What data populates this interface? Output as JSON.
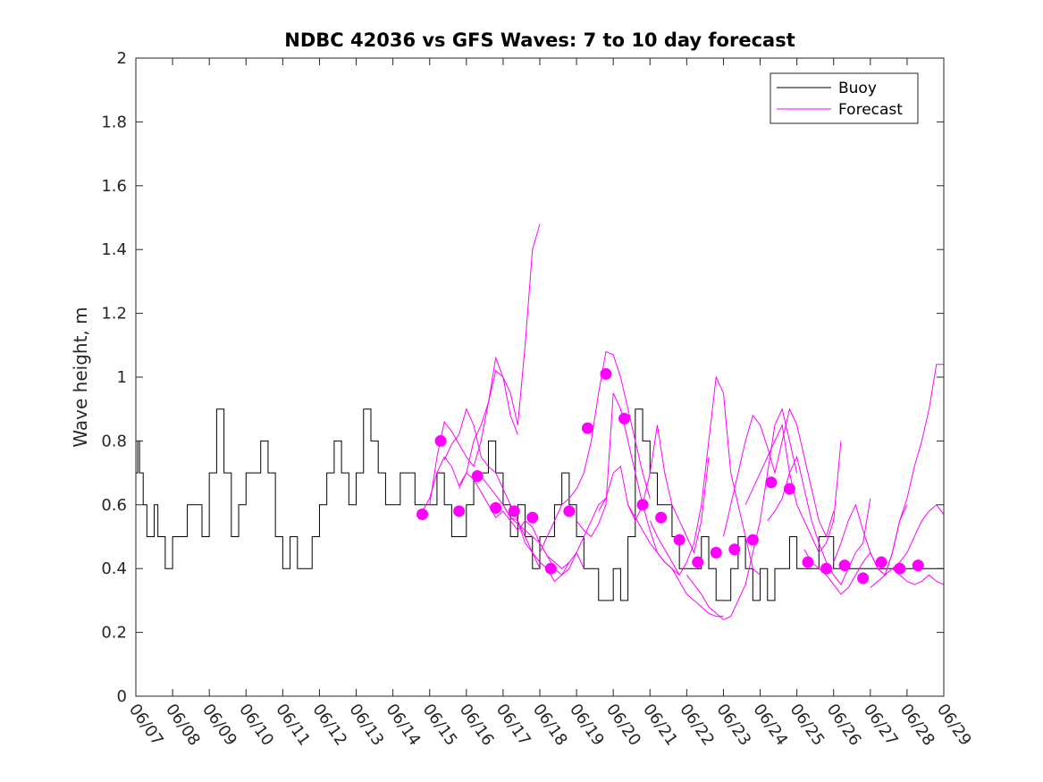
{
  "chart_data": {
    "type": "line",
    "title": "NDBC 42036 vs GFS Waves: 7 to 10 day forecast",
    "xlabel": "",
    "ylabel": "Wave height, m",
    "ylim": [
      0,
      2
    ],
    "yticks": [
      "0",
      "0.2",
      "0.4",
      "0.6",
      "0.8",
      "1",
      "1.2",
      "1.4",
      "1.6",
      "1.8",
      "2"
    ],
    "xlim_days": [
      0,
      22
    ],
    "xticks": [
      "06/07",
      "06/08",
      "06/09",
      "06/10",
      "06/11",
      "06/12",
      "06/13",
      "06/14",
      "06/15",
      "06/16",
      "06/17",
      "06/18",
      "06/19",
      "06/20",
      "06/21",
      "06/22",
      "06/23",
      "06/24",
      "06/25",
      "06/26",
      "06/27",
      "06/28",
      "06/29"
    ],
    "grid": false,
    "legend": {
      "position": "top-right",
      "entries": [
        "Buoy",
        "Forecast"
      ]
    },
    "colors": {
      "buoy": "#000000",
      "forecast": "#ff00ff"
    },
    "series": [
      {
        "name": "Buoy",
        "x": [
          0,
          0.05,
          0.1,
          0.2,
          0.3,
          0.4,
          0.5,
          0.6,
          0.8,
          1.0,
          1.2,
          1.4,
          1.6,
          1.8,
          2.0,
          2.2,
          2.4,
          2.6,
          2.8,
          3.0,
          3.2,
          3.4,
          3.6,
          3.8,
          4.0,
          4.2,
          4.4,
          4.6,
          4.8,
          5.0,
          5.2,
          5.4,
          5.6,
          5.8,
          6.0,
          6.2,
          6.4,
          6.6,
          6.8,
          7.0,
          7.2,
          7.4,
          7.6,
          7.8,
          8.0,
          8.2,
          8.4,
          8.6,
          8.8,
          9.0,
          9.2,
          9.4,
          9.6,
          9.8,
          10.0,
          10.2,
          10.4,
          10.6,
          10.8,
          11.0,
          11.2,
          11.4,
          11.6,
          11.8,
          12.0,
          12.2,
          12.4,
          12.6,
          12.8,
          13.0,
          13.2,
          13.4,
          13.6,
          13.8,
          14.0,
          14.2,
          14.4,
          14.6,
          14.8,
          15.0,
          15.2,
          15.4,
          15.6,
          15.8,
          16.0,
          16.2,
          16.4,
          16.6,
          16.8,
          17.0,
          17.2,
          17.4,
          17.6,
          17.8,
          18.0,
          18.2,
          18.4,
          18.6,
          18.8,
          19.0,
          19.2,
          19.4,
          19.6,
          19.8,
          20.0,
          20.2,
          20.4,
          20.6,
          20.8,
          21.0,
          21.2,
          21.4,
          21.6,
          21.8,
          22.0
        ],
        "values": [
          0.7,
          0.8,
          0.7,
          0.6,
          0.5,
          0.5,
          0.6,
          0.5,
          0.4,
          0.5,
          0.5,
          0.6,
          0.6,
          0.5,
          0.7,
          0.9,
          0.7,
          0.5,
          0.6,
          0.7,
          0.7,
          0.8,
          0.7,
          0.5,
          0.4,
          0.5,
          0.4,
          0.4,
          0.5,
          0.6,
          0.7,
          0.8,
          0.7,
          0.6,
          0.7,
          0.9,
          0.8,
          0.7,
          0.6,
          0.6,
          0.7,
          0.7,
          0.6,
          0.6,
          0.6,
          0.7,
          0.6,
          0.5,
          0.5,
          0.6,
          0.7,
          0.7,
          0.8,
          0.7,
          0.6,
          0.5,
          0.6,
          0.5,
          0.4,
          0.5,
          0.5,
          0.6,
          0.7,
          0.6,
          0.5,
          0.4,
          0.4,
          0.3,
          0.3,
          0.4,
          0.3,
          0.5,
          0.9,
          0.8,
          0.7,
          0.6,
          0.6,
          0.5,
          0.4,
          0.4,
          0.4,
          0.5,
          0.4,
          0.3,
          0.3,
          0.4,
          0.5,
          0.4,
          0.3,
          0.4,
          0.3,
          0.4,
          0.4,
          0.5,
          0.4,
          0.4,
          0.4,
          0.5,
          0.5,
          0.4,
          0.4,
          0.4,
          0.4,
          0.4,
          0.4,
          0.4,
          0.4,
          0.4,
          0.4,
          0.4,
          0.4,
          0.4,
          0.4,
          0.4,
          0.4
        ]
      },
      {
        "name": "Forecast",
        "lines": [
          {
            "x": [
              7.8,
              8.0,
              8.2,
              8.4,
              8.6,
              8.8,
              9.0,
              9.2,
              9.4,
              9.6,
              9.8,
              10.0,
              10.2,
              10.4,
              10.6,
              10.8,
              11.0
            ],
            "values": [
              0.58,
              0.62,
              0.7,
              0.75,
              0.72,
              0.66,
              0.7,
              0.8,
              0.85,
              0.92,
              1.06,
              1.0,
              0.95,
              0.85,
              1.1,
              1.4,
              1.48
            ]
          },
          {
            "x": [
              8.0,
              8.2,
              8.4,
              8.6,
              8.8,
              9.0,
              9.2,
              9.4,
              9.6,
              9.8,
              10.0,
              10.2,
              10.4
            ],
            "values": [
              0.6,
              0.75,
              0.86,
              0.83,
              0.79,
              0.75,
              0.72,
              0.8,
              0.92,
              1.02,
              1.0,
              0.88,
              0.82
            ]
          },
          {
            "x": [
              8.4,
              8.6,
              8.8,
              9.0,
              9.2,
              9.4,
              9.6,
              9.8,
              10.0,
              10.2,
              10.4,
              10.6,
              10.8,
              11.0
            ],
            "values": [
              0.74,
              0.79,
              0.82,
              0.9,
              0.85,
              0.75,
              0.72,
              0.7,
              0.65,
              0.6,
              0.55,
              0.48,
              0.45,
              0.4
            ]
          },
          {
            "x": [
              8.8,
              9.0,
              9.2,
              9.4,
              9.6,
              9.8,
              10.0,
              10.2,
              10.4,
              10.6,
              10.8,
              11.0,
              11.2,
              11.4,
              11.6,
              11.8
            ],
            "values": [
              0.65,
              0.7,
              0.68,
              0.64,
              0.6,
              0.56,
              0.58,
              0.55,
              0.52,
              0.55,
              0.53,
              0.48,
              0.44,
              0.42,
              0.4,
              0.42
            ]
          },
          {
            "x": [
              9.4,
              9.6,
              9.8,
              10.0,
              10.2,
              10.4,
              10.6,
              10.8,
              11.0,
              11.2,
              11.4,
              11.6,
              11.8,
              12.0,
              12.2
            ],
            "values": [
              0.69,
              0.66,
              0.63,
              0.6,
              0.56,
              0.54,
              0.52,
              0.5,
              0.48,
              0.44,
              0.4,
              0.38,
              0.4,
              0.45,
              0.4
            ]
          },
          {
            "x": [
              10.0,
              10.2,
              10.4,
              10.6,
              10.8,
              11.0,
              11.2,
              11.4,
              11.6,
              11.8,
              12.0,
              12.2,
              12.4,
              12.6,
              12.8
            ],
            "values": [
              0.6,
              0.56,
              0.55,
              0.5,
              0.45,
              0.42,
              0.4,
              0.36,
              0.38,
              0.42,
              0.45,
              0.5,
              0.55,
              0.6,
              0.62
            ]
          },
          {
            "x": [
              11.0,
              11.2,
              11.4,
              11.6,
              11.8,
              12.0,
              12.2,
              12.4,
              12.6,
              12.8,
              13.0,
              13.2,
              13.4,
              13.6,
              13.8,
              14.0
            ],
            "values": [
              0.45,
              0.5,
              0.55,
              0.6,
              0.62,
              0.65,
              0.7,
              0.8,
              0.95,
              1.08,
              1.07,
              1.0,
              0.9,
              0.8,
              0.7,
              0.62
            ]
          },
          {
            "x": [
              12.0,
              12.2,
              12.4,
              12.6,
              12.8,
              13.0,
              13.2,
              13.4,
              13.6,
              13.8,
              14.0,
              14.2,
              14.4,
              14.6,
              14.8
            ],
            "values": [
              0.55,
              0.52,
              0.5,
              0.54,
              0.6,
              0.95,
              0.9,
              0.8,
              0.7,
              0.6,
              0.52,
              0.45,
              0.42,
              0.4,
              0.38
            ]
          },
          {
            "x": [
              12.6,
              12.8,
              13.0,
              13.2,
              13.4,
              13.6,
              13.8,
              14.0,
              14.2,
              14.4,
              14.6,
              14.8,
              15.0,
              15.2,
              15.4,
              15.6
            ],
            "values": [
              0.58,
              0.62,
              0.7,
              0.72,
              0.6,
              0.55,
              0.6,
              0.7,
              0.85,
              0.7,
              0.6,
              0.55,
              0.5,
              0.45,
              0.55,
              0.75
            ]
          },
          {
            "x": [
              13.4,
              13.6,
              13.8,
              14.0,
              14.2,
              14.4,
              14.6,
              14.8,
              15.0,
              15.2,
              15.4,
              15.6,
              15.8,
              16.0
            ],
            "values": [
              0.6,
              0.56,
              0.52,
              0.48,
              0.45,
              0.42,
              0.4,
              0.36,
              0.32,
              0.3,
              0.28,
              0.26,
              0.25,
              0.25
            ]
          },
          {
            "x": [
              14.0,
              14.2,
              14.4,
              14.6,
              14.8,
              15.0,
              15.2,
              15.4,
              15.6,
              15.8,
              16.0,
              16.2,
              16.4,
              16.6,
              16.8,
              17.0
            ],
            "values": [
              0.55,
              0.5,
              0.46,
              0.42,
              0.38,
              0.42,
              0.48,
              0.6,
              0.8,
              1.0,
              0.95,
              0.7,
              0.6,
              0.5,
              0.4,
              0.38
            ]
          },
          {
            "x": [
              15.0,
              15.2,
              15.4,
              15.6,
              15.8,
              16.0,
              16.2,
              16.4,
              16.6,
              16.8,
              17.0,
              17.2,
              17.4,
              17.6,
              17.8,
              18.0
            ],
            "values": [
              0.38,
              0.35,
              0.32,
              0.28,
              0.26,
              0.24,
              0.25,
              0.3,
              0.35,
              0.45,
              0.55,
              0.7,
              0.85,
              0.9,
              0.8,
              0.7
            ]
          },
          {
            "x": [
              16.0,
              16.2,
              16.4,
              16.6,
              16.8,
              17.0,
              17.2,
              17.4,
              17.6,
              17.8,
              18.0,
              18.2,
              18.4,
              18.6,
              18.8,
              19.0
            ],
            "values": [
              0.5,
              0.6,
              0.7,
              0.8,
              0.88,
              0.85,
              0.78,
              0.7,
              0.8,
              0.9,
              0.85,
              0.75,
              0.65,
              0.55,
              0.5,
              0.58
            ]
          },
          {
            "x": [
              16.6,
              16.8,
              17.0,
              17.2,
              17.4,
              17.6,
              17.8,
              18.0,
              18.2,
              18.4,
              18.6,
              18.8,
              19.0,
              19.2
            ],
            "values": [
              0.6,
              0.65,
              0.7,
              0.75,
              0.8,
              0.85,
              0.7,
              0.6,
              0.55,
              0.5,
              0.45,
              0.48,
              0.55,
              0.8
            ]
          },
          {
            "x": [
              17.2,
              17.4,
              17.6,
              17.8,
              18.0,
              18.2,
              18.4,
              18.6,
              18.8,
              19.0,
              19.2,
              19.4,
              19.6,
              19.8,
              20.0
            ],
            "values": [
              0.55,
              0.58,
              0.62,
              0.7,
              0.75,
              0.65,
              0.55,
              0.48,
              0.42,
              0.38,
              0.35,
              0.4,
              0.45,
              0.48,
              0.62
            ]
          },
          {
            "x": [
              18.2,
              18.4,
              18.6,
              18.8,
              19.0,
              19.2,
              19.4,
              19.6,
              19.8,
              20.0,
              20.2,
              20.4,
              20.6,
              20.8,
              21.0
            ],
            "values": [
              0.46,
              0.42,
              0.4,
              0.38,
              0.35,
              0.32,
              0.34,
              0.38,
              0.42,
              0.45,
              0.4,
              0.38,
              0.45,
              0.55,
              0.6
            ]
          },
          {
            "x": [
              19.0,
              19.2,
              19.4,
              19.6,
              19.8,
              20.0,
              20.2,
              20.4,
              20.6,
              20.8,
              21.0,
              21.2,
              21.4,
              21.6,
              21.8,
              22.0
            ],
            "values": [
              0.42,
              0.48,
              0.55,
              0.6,
              0.52,
              0.45,
              0.4,
              0.38,
              0.45,
              0.55,
              0.62,
              0.72,
              0.8,
              0.9,
              1.04,
              1.04
            ]
          },
          {
            "x": [
              20.0,
              20.2,
              20.4,
              20.6,
              20.8,
              21.0,
              21.2,
              21.4,
              21.6,
              21.8,
              22.0
            ],
            "values": [
              0.34,
              0.36,
              0.38,
              0.4,
              0.42,
              0.45,
              0.5,
              0.55,
              0.58,
              0.6,
              0.57
            ]
          },
          {
            "x": [
              20.6,
              20.8,
              21.0,
              21.2,
              21.4,
              21.6,
              21.8,
              22.0
            ],
            "values": [
              0.4,
              0.38,
              0.36,
              0.35,
              0.36,
              0.38,
              0.36,
              0.35
            ]
          }
        ],
        "markers": {
          "x": [
            7.8,
            8.3,
            8.8,
            9.3,
            9.8,
            10.3,
            10.8,
            11.3,
            11.8,
            12.3,
            12.8,
            13.3,
            13.8,
            14.3,
            14.8,
            15.3,
            15.8,
            16.3,
            16.8,
            17.3,
            17.8,
            18.3,
            18.8,
            19.3,
            19.8,
            20.3,
            20.8,
            21.3
          ],
          "values": [
            0.57,
            0.8,
            0.58,
            0.69,
            0.59,
            0.58,
            0.56,
            0.4,
            0.58,
            0.84,
            1.01,
            0.87,
            0.6,
            0.56,
            0.49,
            0.42,
            0.45,
            0.46,
            0.49,
            0.67,
            0.65,
            0.42,
            0.4,
            0.41,
            0.37,
            0.42,
            0.4,
            0.41
          ]
        }
      }
    ]
  }
}
